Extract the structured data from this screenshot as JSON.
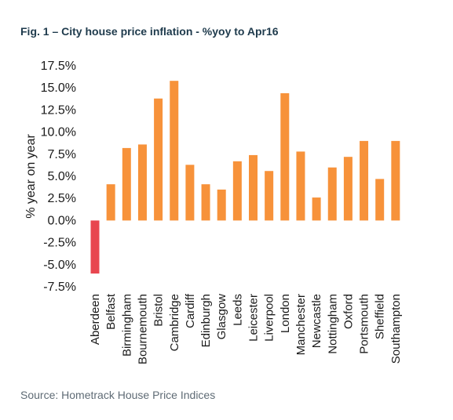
{
  "title": "Fig. 1 – City house price inflation - %yoy to Apr16",
  "source": "Source: Hometrack House Price Indices",
  "chart_data": {
    "type": "bar",
    "ylabel": "% year on year",
    "xlabel": "",
    "ylim": [
      -7.5,
      17.5
    ],
    "yticks": [
      "17.5%",
      "15.0%",
      "12.5%",
      "10.0%",
      "7.5%",
      "5.0%",
      "2.5%",
      "0.0%",
      "-2.5%",
      "-5.0%",
      "-7.5%"
    ],
    "ytick_values": [
      17.5,
      15.0,
      12.5,
      10.0,
      7.5,
      5.0,
      2.5,
      0.0,
      -2.5,
      -5.0,
      -7.5
    ],
    "categories": [
      "Aberdeen",
      "Belfast",
      "Birmingham",
      "Bournemouth",
      "Bristol",
      "Cambridge",
      "Cardiff",
      "Edinburgh",
      "Glasgow",
      "Leeds",
      "Leicester",
      "Liverpool",
      "London",
      "Manchester",
      "Newcastle",
      "Nottingham",
      "Oxford",
      "Portsmouth",
      "Sheffield",
      "Southampton"
    ],
    "values": [
      -6.0,
      4.1,
      8.2,
      8.6,
      13.8,
      15.8,
      6.3,
      4.1,
      3.5,
      6.7,
      7.4,
      5.6,
      14.4,
      7.8,
      2.6,
      6.0,
      7.2,
      9.0,
      4.7,
      9.0
    ],
    "colors": {
      "positive": "#f7923a",
      "negative": "#e8464f"
    },
    "grid": false,
    "legend": "none"
  }
}
